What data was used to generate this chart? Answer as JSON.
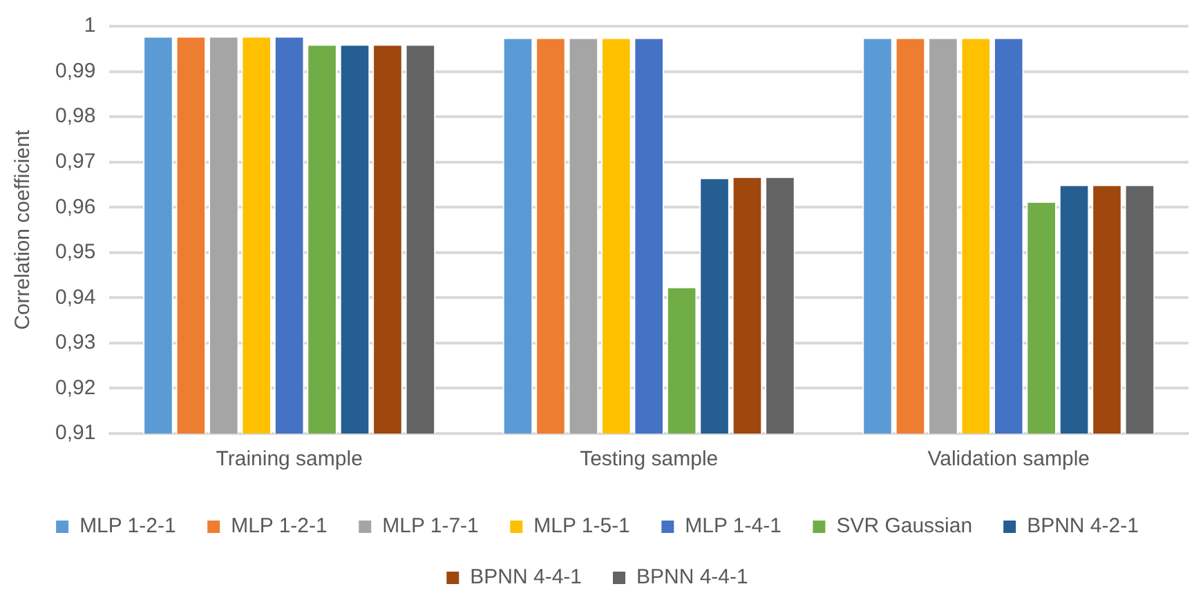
{
  "chart_data": {
    "type": "bar",
    "ylabel": "Correlation coefficient",
    "categories": [
      "Training sample",
      "Testing sample",
      "Validation sample"
    ],
    "series": [
      {
        "name": "MLP 1-2-1",
        "color": "#5b9bd5",
        "values": [
          0.9978,
          0.9975,
          0.9975
        ]
      },
      {
        "name": "MLP 1-2-1",
        "color": "#ed7d31",
        "values": [
          0.9978,
          0.9975,
          0.9975
        ]
      },
      {
        "name": "MLP 1-7-1",
        "color": "#a5a5a5",
        "values": [
          0.9978,
          0.9975,
          0.9975
        ]
      },
      {
        "name": "MLP 1-5-1",
        "color": "#ffc000",
        "values": [
          0.9978,
          0.9975,
          0.9975
        ]
      },
      {
        "name": "MLP 1-4-1",
        "color": "#4472c4",
        "values": [
          0.9978,
          0.9975,
          0.9975
        ]
      },
      {
        "name": "SVR Gaussian",
        "color": "#70ad47",
        "values": [
          0.996,
          0.9424,
          0.9613
        ]
      },
      {
        "name": "BPNN 4-2-1",
        "color": "#255e91",
        "values": [
          0.996,
          0.9665,
          0.965
        ]
      },
      {
        "name": "BPNN 4-4-1",
        "color": "#9e480e",
        "values": [
          0.996,
          0.9668,
          0.965
        ]
      },
      {
        "name": "BPNN 4-4-1",
        "color": "#636363",
        "values": [
          0.996,
          0.9668,
          0.965
        ]
      }
    ],
    "ylim": [
      0.91,
      1
    ],
    "yticks": [
      {
        "value": 0.91,
        "label": "0,91"
      },
      {
        "value": 0.92,
        "label": "0,92"
      },
      {
        "value": 0.93,
        "label": "0,93"
      },
      {
        "value": 0.94,
        "label": "0,94"
      },
      {
        "value": 0.95,
        "label": "0,95"
      },
      {
        "value": 0.96,
        "label": "0,96"
      },
      {
        "value": 0.97,
        "label": "0,97"
      },
      {
        "value": 0.98,
        "label": "0,98"
      },
      {
        "value": 0.99,
        "label": "0,99"
      },
      1
    ],
    "grid": "y",
    "legend": "bottom"
  }
}
